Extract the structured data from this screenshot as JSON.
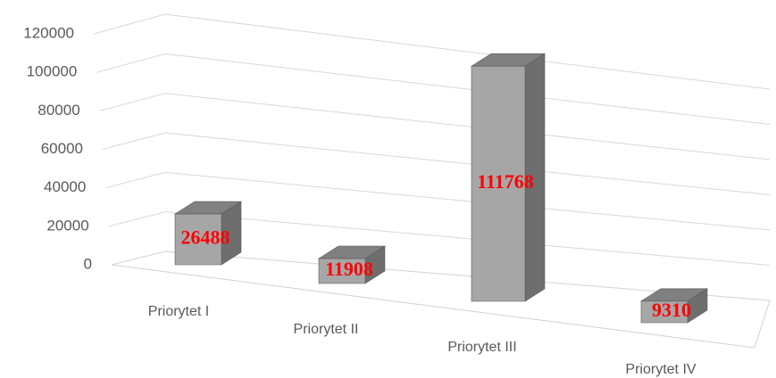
{
  "chart_data": {
    "type": "bar3d",
    "categories": [
      "Priorytet I",
      "Priorytet II",
      "Priorytet III",
      "Priorytet IV"
    ],
    "values": [
      26488,
      11908,
      111768,
      9310
    ],
    "color": "#a6a6a6",
    "ylim": [
      0,
      120000
    ],
    "yticks": [
      0,
      20000,
      40000,
      60000,
      80000,
      100000,
      120000
    ],
    "grid": true
  }
}
